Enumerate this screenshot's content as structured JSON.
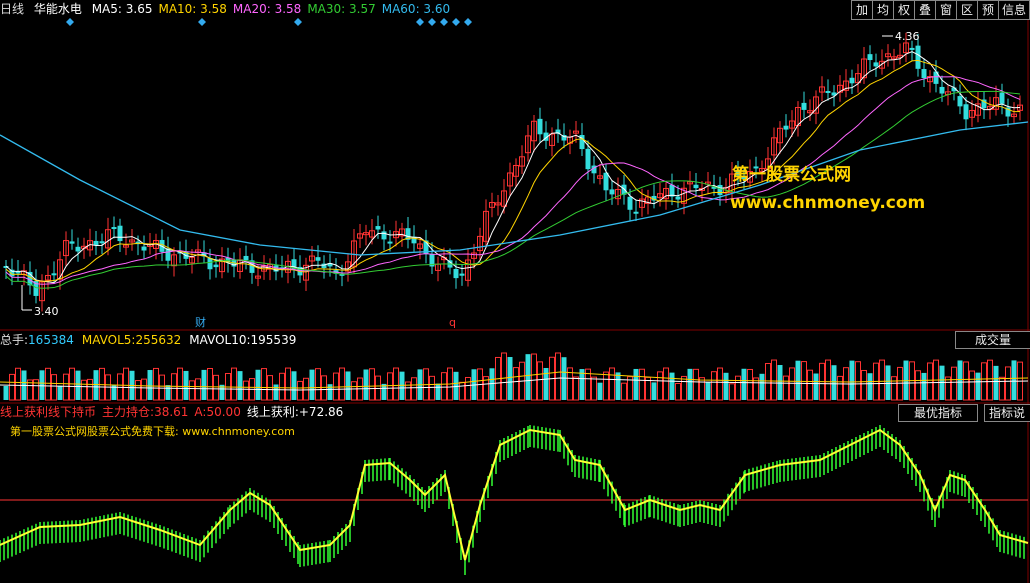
{
  "main": {
    "period": "日线",
    "stock": "华能水电",
    "ma": [
      {
        "label": "MA5:",
        "value": "3.65",
        "color": "#ffffff"
      },
      {
        "label": "MA10:",
        "value": "3.58",
        "color": "#ffd400"
      },
      {
        "label": "MA20:",
        "value": "3.58",
        "color": "#ff66ff"
      },
      {
        "label": "MA30:",
        "value": "3.57",
        "color": "#33cc33"
      },
      {
        "label": "MA60:",
        "value": "3.60",
        "color": "#33bbee"
      }
    ],
    "high_label": "4.36",
    "low_label": "3.40",
    "mark_cai": "财",
    "mark_q": "q",
    "watermark1": "第一股票公式网",
    "watermark2": "www.chnmoney.com"
  },
  "toolbar": [
    "加",
    "均",
    "权",
    "叠",
    "窗",
    "区",
    "预",
    "信息"
  ],
  "volume": {
    "label1": "总手:",
    "value1": "165384",
    "label2": "MAVOL5:",
    "value2": "255632",
    "label3": "MAVOL10:",
    "value3": "195539",
    "button": "成交量"
  },
  "indicator": {
    "title": "线上获利线下持币",
    "label1": "主力持仓:",
    "value1": "38.61",
    "label2": "A:",
    "value2": "50.00",
    "label3": "线上获利:",
    "value3": "+72.86",
    "subtitle": "第一股票公式网股票公式免费下载: www.chnmoney.com",
    "btn1": "最优指标",
    "btn2": "指标说明",
    "color_up": "#ff3333",
    "color_line": "#ffff33",
    "color_bar": "#33ff33"
  }
}
